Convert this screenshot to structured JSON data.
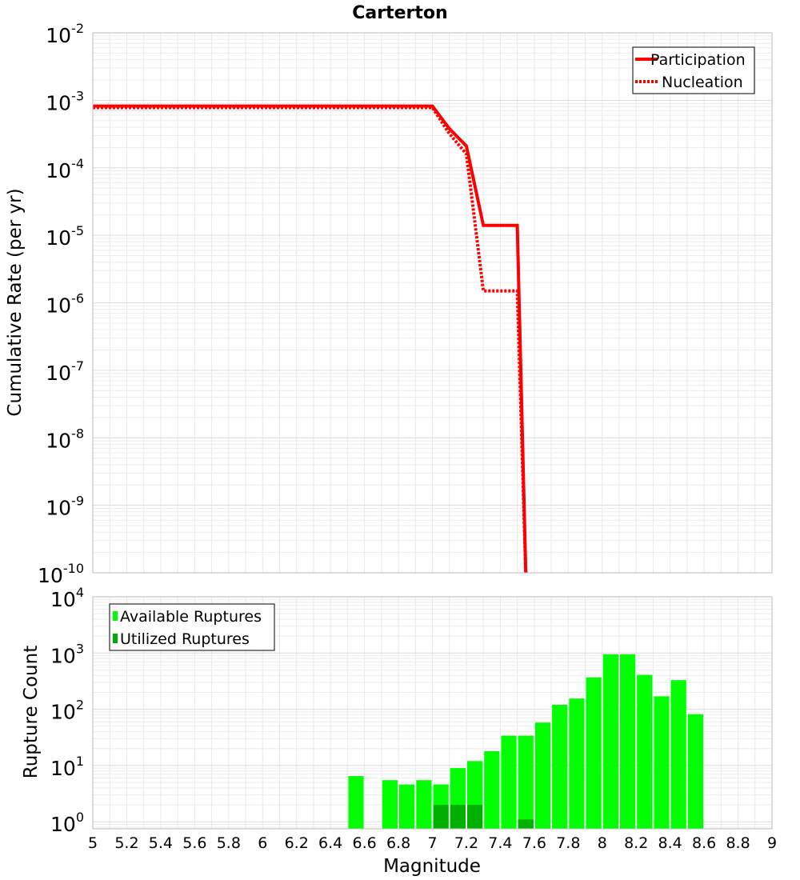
{
  "title": "Carterton",
  "chart_data": [
    {
      "type": "line",
      "ylabel": "Cumulative Rate (per yr)",
      "xlim": [
        5,
        9
      ],
      "ylim": [
        1e-10,
        0.01
      ],
      "yscale": "log",
      "grid": true,
      "legend_position": "top-right",
      "y_tick_exponents": [
        "-2",
        "-3",
        "-4",
        "-5",
        "-6",
        "-7",
        "-8",
        "-9",
        "-10"
      ],
      "series": [
        {
          "name": "Participation",
          "style": "solid",
          "color": "#ff0000",
          "x": [
            5.0,
            7.0,
            7.1,
            7.2,
            7.3,
            7.4,
            7.5,
            7.55,
            7.56
          ],
          "y": [
            0.00082,
            0.00082,
            0.00038,
            0.00021,
            1.4e-05,
            1.4e-05,
            1.4e-05,
            1e-10,
            1e-10
          ]
        },
        {
          "name": "Nucleation",
          "style": "dotted",
          "color": "#ff0000",
          "x": [
            5.0,
            7.0,
            7.1,
            7.2,
            7.3,
            7.4,
            7.5,
            7.55,
            7.56
          ],
          "y": [
            0.00078,
            0.00078,
            0.00032,
            0.00016,
            1.5e-06,
            1.5e-06,
            1.5e-06,
            1e-10,
            1e-10
          ]
        }
      ]
    },
    {
      "type": "bar",
      "xlabel": "Magnitude",
      "ylabel": "Rupture Count",
      "xlim": [
        5,
        9
      ],
      "ylim": [
        0.75,
        10000
      ],
      "yscale": "log",
      "grid": true,
      "legend_position": "top-left",
      "x_ticks": [
        "5",
        "5.2",
        "5.4",
        "5.6",
        "5.8",
        "6",
        "6.2",
        "6.4",
        "6.6",
        "6.8",
        "7",
        "7.2",
        "7.4",
        "7.6",
        "7.8",
        "8",
        "8.2",
        "8.4",
        "8.6",
        "8.8",
        "9"
      ],
      "y_tick_exponents": [
        "0",
        "1",
        "2",
        "3",
        "4"
      ],
      "bin_width": 0.1,
      "series": [
        {
          "name": "Available Ruptures",
          "color": "#00ff00",
          "x": [
            6.55,
            6.75,
            6.85,
            6.95,
            7.05,
            7.15,
            7.25,
            7.35,
            7.45,
            7.55,
            7.65,
            7.75,
            7.85,
            7.95,
            8.05,
            8.15,
            8.25,
            8.35,
            8.45,
            8.55
          ],
          "values": [
            6.5,
            5.5,
            4.6,
            5.5,
            4.6,
            9,
            12,
            18,
            34,
            34,
            58,
            120,
            155,
            370,
            950,
            950,
            410,
            170,
            330,
            82
          ]
        },
        {
          "name": "Utilized Ruptures",
          "color": "#00b000",
          "x": [
            7.05,
            7.15,
            7.25,
            7.55
          ],
          "values": [
            2,
            2,
            2,
            1.1
          ]
        }
      ]
    }
  ]
}
